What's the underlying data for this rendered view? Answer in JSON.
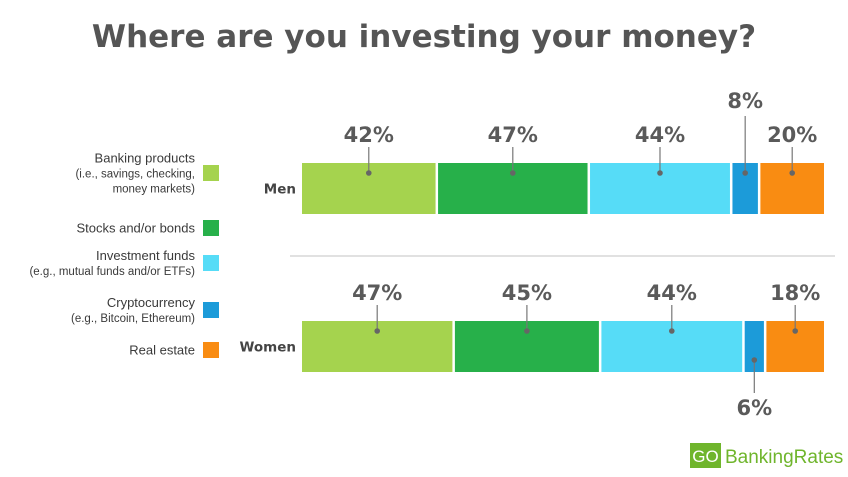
{
  "chart_data": {
    "type": "bar",
    "title": "Where are you investing your money?",
    "rows": [
      {
        "label": "Men",
        "values": [
          42,
          47,
          44,
          8,
          20
        ]
      },
      {
        "label": "Women",
        "values": [
          47,
          45,
          44,
          6,
          18
        ]
      }
    ],
    "series": [
      {
        "name": "Banking products",
        "sub": [
          "(i.e., savings, checking,",
          "money markets)"
        ],
        "color": "#a5d34e"
      },
      {
        "name": "Stocks and/or bonds",
        "sub": [],
        "color": "#27b04a"
      },
      {
        "name": "Investment funds",
        "sub": [
          "(e.g., mutual funds and/or ETFs)"
        ],
        "color": "#56dcf7"
      },
      {
        "name": "Cryptocurrency",
        "sub": [
          "(e.g., Bitcoin, Ethereum)"
        ],
        "color": "#1c9bd9"
      },
      {
        "name": "Real estate",
        "sub": [],
        "color": "#f98c12"
      }
    ],
    "value_suffix": "%",
    "legend_position": "left"
  },
  "brand": {
    "go": "GO",
    "rest": "BankingRates",
    "color": "#6fb52c"
  }
}
